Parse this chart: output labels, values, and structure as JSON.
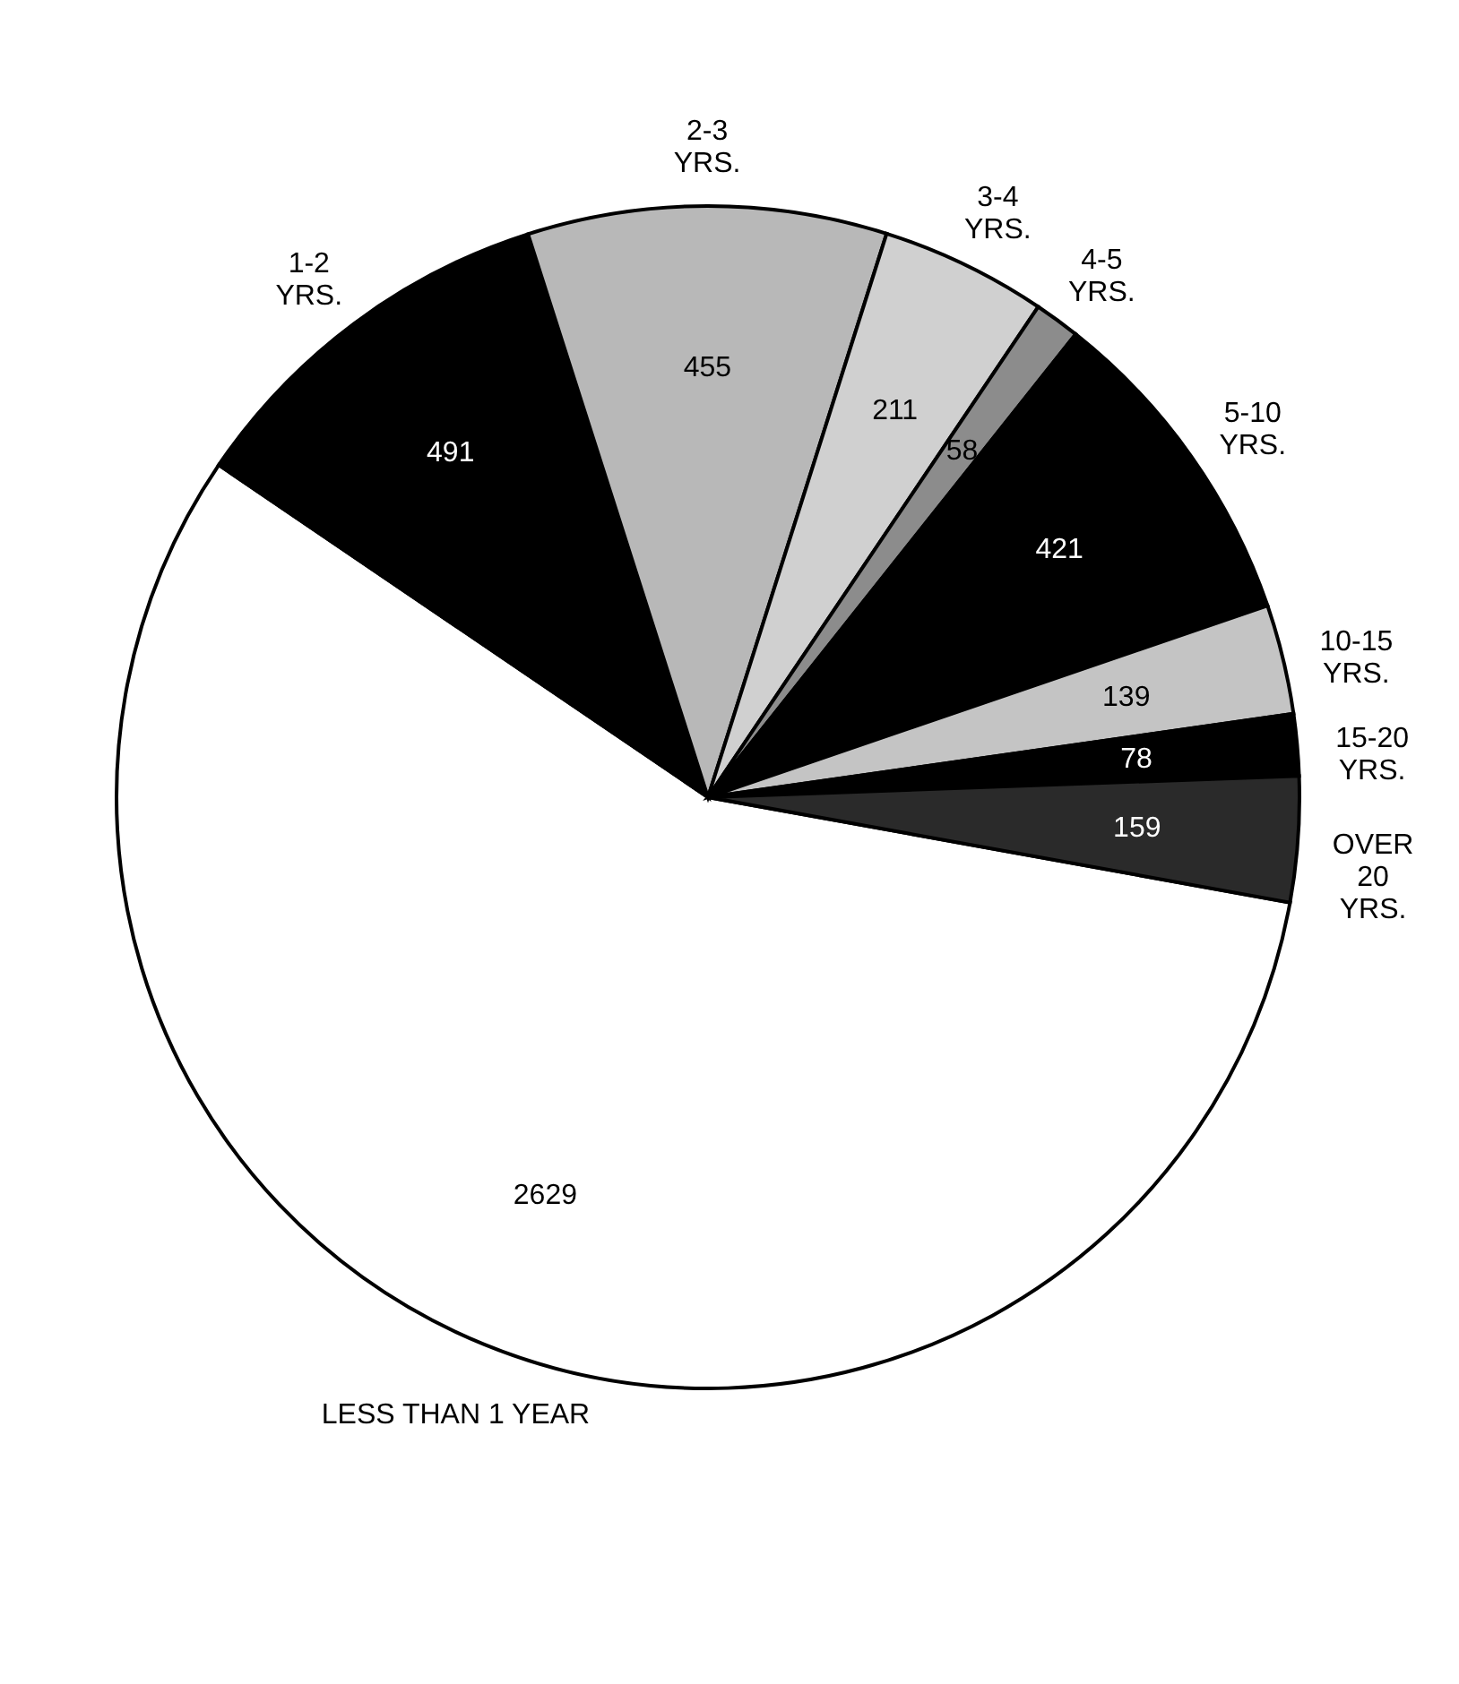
{
  "chart_data": {
    "type": "pie",
    "categories": [
      "LESS THAN 1 YEAR",
      "1-2\nYRS.",
      "2-3\nYRS.",
      "3-4\nYRS.",
      "4-5\nYRS.",
      "5-10\nYRS.",
      "10-15\nYRS.",
      "15-20\nYRS.",
      "OVER\n20\nYRS."
    ],
    "values": [
      2629,
      491,
      455,
      211,
      58,
      421,
      139,
      78,
      159
    ],
    "colors": [
      "#ffffff",
      "#000000",
      "#b8b8b8",
      "#d0d0d0",
      "#8c8c8c",
      "#000000",
      "#c4c4c4",
      "#000000",
      "#2a2a2a"
    ],
    "data_labels": true
  }
}
